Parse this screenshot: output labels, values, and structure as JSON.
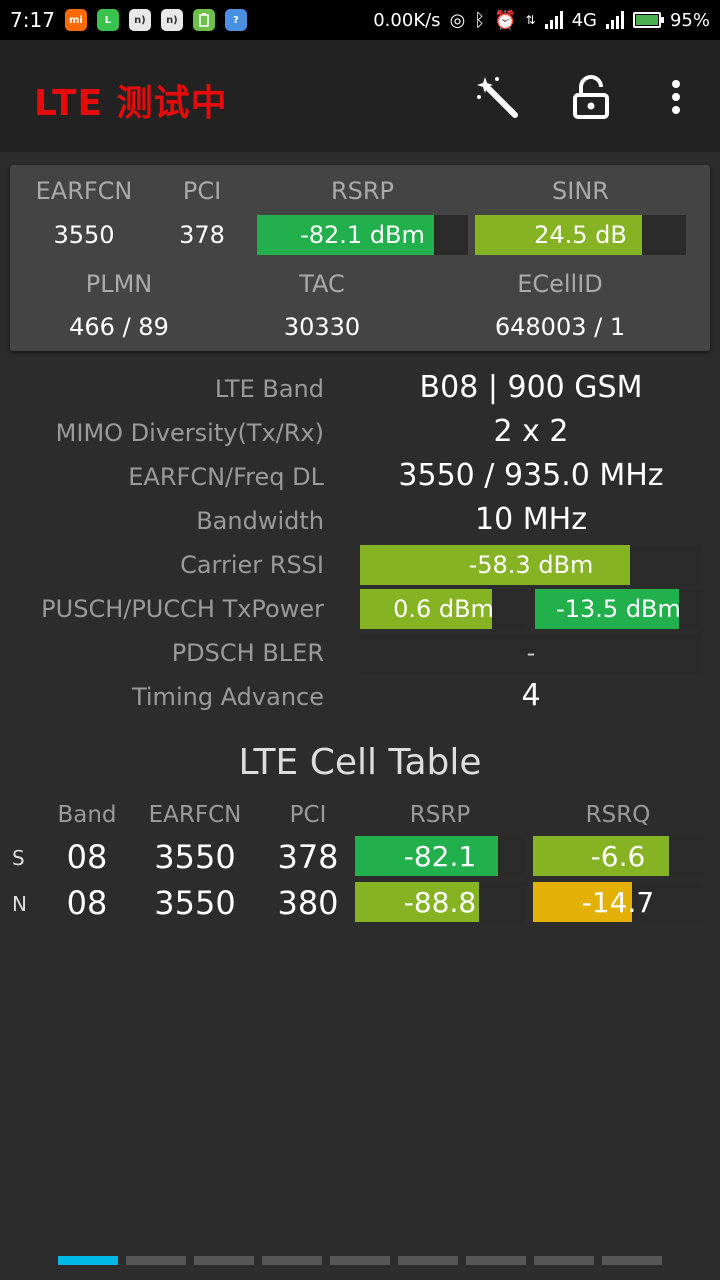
{
  "status_bar": {
    "time": "7:17",
    "speed": "0.00K/s",
    "network": "4G",
    "battery": "95%",
    "notification_icons": [
      "mi-icon",
      "line-icon",
      "nfc-icon",
      "nfc-icon",
      "battery-app-icon",
      "signal-app-icon"
    ]
  },
  "toolbar": {
    "title": "LTE 测试中",
    "title_color": "#e30b0b"
  },
  "summary": {
    "earfcn_label": "EARFCN",
    "earfcn": "3550",
    "pci_label": "PCI",
    "pci": "378",
    "rsrp_label": "RSRP",
    "rsrp": "-82.1 dBm",
    "rsrp_level": 0.84,
    "rsrp_color": "#21b04b",
    "sinr_label": "SINR",
    "sinr": "24.5 dB",
    "sinr_level": 0.79,
    "sinr_color": "#86b324",
    "plmn_label": "PLMN",
    "plmn": "466 / 89",
    "tac_label": "TAC",
    "tac": "30330",
    "ecellid_label": "ECellID",
    "ecellid": "648003 / 1"
  },
  "details": {
    "band_label": "LTE Band",
    "band": "B08 | 900 GSM",
    "mimo_label": "MIMO Diversity(Tx/Rx)",
    "mimo": "2 x 2",
    "freq_label": "EARFCN/Freq DL",
    "freq": "3550 / 935.0 MHz",
    "bw_label": "Bandwidth",
    "bw": "10 MHz",
    "rssi_label": "Carrier RSSI",
    "rssi": "-58.3 dBm",
    "rssi_level": 0.79,
    "rssi_color": "#86b324",
    "txpower_label": "PUSCH/PUCCH TxPower",
    "pusch": "0.6 dBm",
    "pusch_level": 0.79,
    "pusch_color": "#86b324",
    "pucch": "-13.5 dBm",
    "pucch_level": 0.86,
    "pucch_color": "#21b04b",
    "bler_label": "PDSCH BLER",
    "bler": "-",
    "ta_label": "Timing Advance",
    "ta": "4"
  },
  "cell_table": {
    "title": "LTE Cell Table",
    "headers": {
      "band": "Band",
      "earfcn": "EARFCN",
      "pci": "PCI",
      "rsrp": "RSRP",
      "rsrq": "RSRQ"
    },
    "rows": [
      {
        "tag": "S",
        "band": "08",
        "earfcn": "3550",
        "pci": "378",
        "rsrp": "-82.1",
        "rsrp_level": 0.84,
        "rsrp_color": "#21b04b",
        "rsrq": "-6.6",
        "rsrq_level": 0.8,
        "rsrq_color": "#86b324"
      },
      {
        "tag": "N",
        "band": "08",
        "earfcn": "3550",
        "pci": "380",
        "rsrp": "-88.8",
        "rsrp_level": 0.73,
        "rsrp_color": "#86b324",
        "rsrq": "-14.7",
        "rsrq_level": 0.58,
        "rsrq_color": "#e3b007"
      }
    ]
  },
  "pager": {
    "pages": 9,
    "active": 0
  }
}
